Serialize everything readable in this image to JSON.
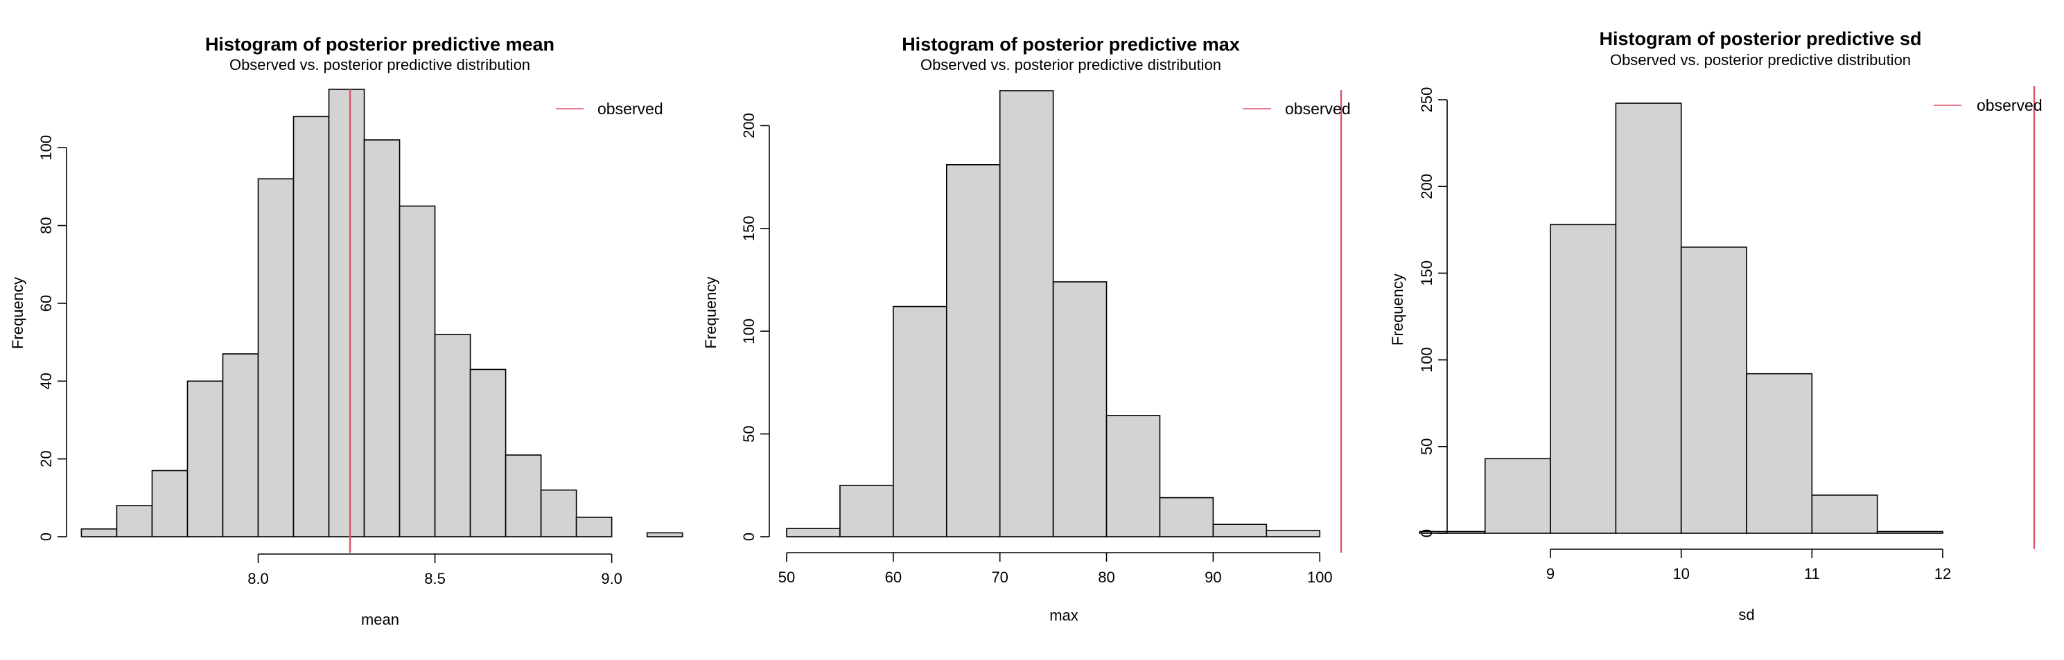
{
  "colors": {
    "bar_fill": "#d3d3d3",
    "bar_stroke": "#000000",
    "observed_line": "#df536b",
    "axis": "#000000"
  },
  "chart_data": [
    {
      "type": "histogram",
      "title": "Histogram of posterior predictive mean",
      "subtitle": "Observed vs. posterior predictive distribution",
      "xlabel": "mean",
      "ylabel": "Frequency",
      "xlim": [
        7.505,
        9.185
      ],
      "ylim": [
        0,
        115
      ],
      "x_ticks": [
        8.0,
        8.5,
        9.0
      ],
      "x_tick_labels": [
        "8.0",
        "8.5",
        "9.0"
      ],
      "y_ticks": [
        0,
        20,
        40,
        60,
        80,
        100
      ],
      "y_tick_labels": [
        "0",
        "20",
        "40",
        "60",
        "80",
        "100"
      ],
      "bin_edges": [
        7.5,
        7.6,
        7.7,
        7.8,
        7.9,
        8.0,
        8.1,
        8.2,
        8.3,
        8.4,
        8.5,
        8.6,
        8.7,
        8.8,
        8.9,
        9.0,
        9.1,
        9.2
      ],
      "values": [
        2,
        8,
        17,
        40,
        47,
        92,
        108,
        115,
        102,
        85,
        52,
        43,
        21,
        12,
        5,
        0,
        1
      ],
      "observed": 8.26,
      "legend": {
        "label": "observed",
        "position": "top-right"
      },
      "grid": false
    },
    {
      "type": "histogram",
      "title": "Histogram of posterior predictive max",
      "subtitle": "Observed vs. posterior predictive distribution",
      "xlabel": "max",
      "ylabel": "Frequency",
      "xlim": [
        50,
        102
      ],
      "ylim": [
        0,
        218
      ],
      "x_ticks": [
        50,
        60,
        70,
        80,
        90,
        100
      ],
      "x_tick_labels": [
        "50",
        "60",
        "70",
        "80",
        "90",
        "100"
      ],
      "y_ticks": [
        0,
        50,
        100,
        150,
        200
      ],
      "y_tick_labels": [
        "0",
        "50",
        "100",
        "150",
        "200"
      ],
      "bin_edges": [
        50,
        55,
        60,
        65,
        70,
        75,
        80,
        85,
        90,
        95,
        100
      ],
      "values": [
        4,
        25,
        112,
        181,
        217,
        124,
        59,
        19,
        6,
        3
      ],
      "observed": 102,
      "legend": {
        "label": "observed",
        "position": "top-right"
      },
      "grid": false
    },
    {
      "type": "histogram",
      "title": "Histogram of posterior predictive sd",
      "subtitle": "Observed vs. posterior predictive distribution",
      "xlabel": "sd",
      "ylabel": "Frequency",
      "xlim": [
        8.3,
        12.7
      ],
      "ylim": [
        0,
        258
      ],
      "x_ticks": [
        9,
        10,
        11,
        12
      ],
      "x_tick_labels": [
        "9",
        "10",
        "11",
        "12"
      ],
      "y_ticks": [
        0,
        50,
        100,
        150,
        200,
        250
      ],
      "y_tick_labels": [
        "0",
        "50",
        "100",
        "150",
        "200",
        "250"
      ],
      "bin_edges": [
        8.0,
        8.5,
        9.0,
        9.5,
        10.0,
        10.5,
        11.0,
        11.5,
        12.0
      ],
      "values": [
        1,
        43,
        178,
        248,
        165,
        92,
        22,
        1
      ],
      "observed": 12.7,
      "legend": {
        "label": "observed",
        "position": "top-right"
      },
      "grid": false
    }
  ]
}
